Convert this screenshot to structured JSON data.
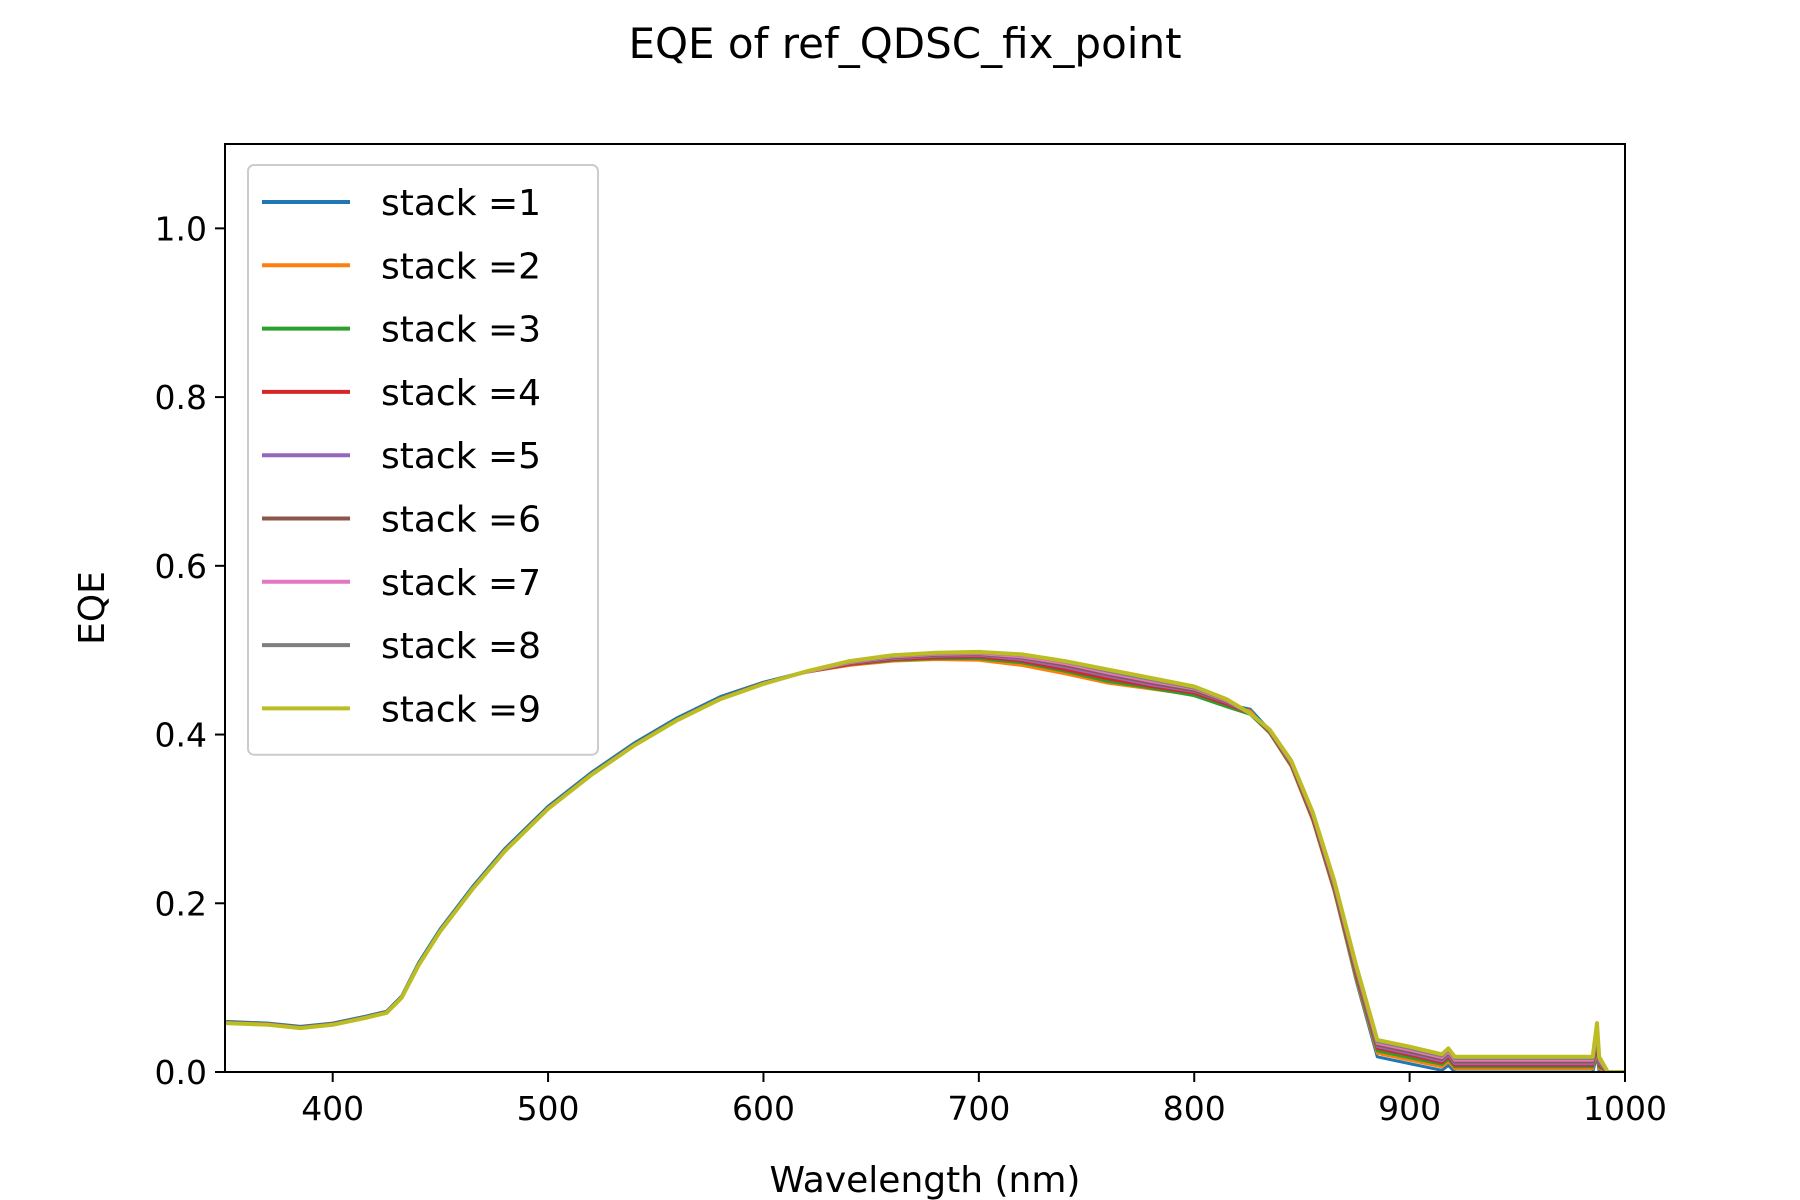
{
  "chart_data": {
    "type": "line",
    "title": "EQE of  ref_QDSC_fix_point",
    "xlabel": "Wavelength (nm)",
    "ylabel": "EQE",
    "xlim": [
      350,
      1000
    ],
    "ylim": [
      0.0,
      1.1
    ],
    "xticks": [
      400,
      500,
      600,
      700,
      800,
      900,
      1000
    ],
    "xtick_labels": [
      "400",
      "500",
      "600",
      "700",
      "800",
      "900",
      "1000"
    ],
    "yticks": [
      0.0,
      0.2,
      0.4,
      0.6,
      0.8,
      1.0
    ],
    "ytick_labels": [
      "0.0",
      "0.2",
      "0.4",
      "0.6",
      "0.8",
      "1.0"
    ],
    "grid": false,
    "legend_position": "top-left",
    "series": [
      {
        "name": "stack =1",
        "color": "#1f77b4",
        "x": [
          350,
          370,
          385,
          400,
          415,
          425,
          432,
          440,
          450,
          465,
          480,
          500,
          520,
          540,
          560,
          580,
          600,
          620,
          640,
          660,
          680,
          700,
          720,
          740,
          760,
          780,
          800,
          815,
          826,
          835,
          845,
          855,
          865,
          875,
          885,
          900,
          915,
          918,
          921,
          925,
          940,
          960,
          980,
          985,
          987,
          988,
          992,
          1000
        ],
        "y": [
          0.06,
          0.058,
          0.054,
          0.058,
          0.066,
          0.072,
          0.09,
          0.13,
          0.17,
          0.22,
          0.265,
          0.315,
          0.355,
          0.39,
          0.42,
          0.445,
          0.462,
          0.475,
          0.483,
          0.488,
          0.49,
          0.49,
          0.484,
          0.474,
          0.463,
          0.455,
          0.447,
          0.436,
          0.43,
          0.405,
          0.365,
          0.3,
          0.215,
          0.11,
          0.018,
          0.01,
          0.002,
          0.008,
          0.0,
          0.0,
          0.0,
          0.0,
          0.0,
          0.0,
          0.02,
          0.0,
          0.0,
          0.0
        ]
      },
      {
        "name": "stack =2",
        "color": "#ff7f0e",
        "x": [
          350,
          370,
          385,
          400,
          415,
          425,
          432,
          440,
          450,
          465,
          480,
          500,
          520,
          540,
          560,
          580,
          600,
          620,
          640,
          660,
          680,
          700,
          720,
          740,
          760,
          780,
          800,
          815,
          826,
          835,
          845,
          855,
          865,
          875,
          885,
          900,
          915,
          918,
          921,
          925,
          940,
          960,
          980,
          985,
          987,
          988,
          992,
          1000
        ],
        "y": [
          0.059,
          0.057,
          0.053,
          0.057,
          0.065,
          0.071,
          0.089,
          0.128,
          0.168,
          0.218,
          0.263,
          0.313,
          0.353,
          0.388,
          0.418,
          0.443,
          0.461,
          0.474,
          0.482,
          0.487,
          0.489,
          0.488,
          0.482,
          0.472,
          0.461,
          0.454,
          0.447,
          0.435,
          0.428,
          0.402,
          0.362,
          0.298,
          0.214,
          0.112,
          0.022,
          0.014,
          0.006,
          0.012,
          0.004,
          0.004,
          0.004,
          0.004,
          0.004,
          0.004,
          0.026,
          0.004,
          0.0,
          0.0
        ]
      },
      {
        "name": "stack =3",
        "color": "#2ca02c",
        "x": [
          350,
          370,
          385,
          400,
          415,
          425,
          432,
          440,
          450,
          465,
          480,
          500,
          520,
          540,
          560,
          580,
          600,
          620,
          640,
          660,
          680,
          700,
          720,
          740,
          760,
          780,
          800,
          815,
          826,
          835,
          845,
          855,
          865,
          875,
          885,
          900,
          915,
          918,
          921,
          925,
          940,
          960,
          980,
          985,
          987,
          988,
          992,
          1000
        ],
        "y": [
          0.059,
          0.057,
          0.053,
          0.057,
          0.065,
          0.071,
          0.089,
          0.128,
          0.168,
          0.218,
          0.263,
          0.313,
          0.353,
          0.388,
          0.418,
          0.443,
          0.461,
          0.474,
          0.483,
          0.488,
          0.49,
          0.49,
          0.485,
          0.475,
          0.463,
          0.455,
          0.446,
          0.433,
          0.424,
          0.402,
          0.363,
          0.299,
          0.215,
          0.114,
          0.025,
          0.017,
          0.009,
          0.015,
          0.006,
          0.006,
          0.006,
          0.006,
          0.006,
          0.006,
          0.03,
          0.006,
          0.0,
          0.0
        ]
      },
      {
        "name": "stack =4",
        "color": "#d62728",
        "x": [
          350,
          370,
          385,
          400,
          415,
          425,
          432,
          440,
          450,
          465,
          480,
          500,
          520,
          540,
          560,
          580,
          600,
          620,
          640,
          660,
          680,
          700,
          720,
          740,
          760,
          780,
          800,
          815,
          826,
          835,
          845,
          855,
          865,
          875,
          885,
          900,
          915,
          918,
          921,
          925,
          940,
          960,
          980,
          985,
          987,
          988,
          992,
          1000
        ],
        "y": [
          0.059,
          0.057,
          0.053,
          0.057,
          0.065,
          0.071,
          0.089,
          0.128,
          0.168,
          0.218,
          0.263,
          0.313,
          0.353,
          0.388,
          0.418,
          0.443,
          0.461,
          0.474,
          0.483,
          0.489,
          0.491,
          0.492,
          0.487,
          0.477,
          0.466,
          0.457,
          0.449,
          0.436,
          0.425,
          0.403,
          0.364,
          0.3,
          0.217,
          0.117,
          0.028,
          0.02,
          0.011,
          0.018,
          0.008,
          0.008,
          0.008,
          0.008,
          0.008,
          0.008,
          0.034,
          0.008,
          0.0,
          0.0
        ]
      },
      {
        "name": "stack =5",
        "color": "#9467bd",
        "x": [
          350,
          370,
          385,
          400,
          415,
          425,
          432,
          440,
          450,
          465,
          480,
          500,
          520,
          540,
          560,
          580,
          600,
          620,
          640,
          660,
          680,
          700,
          720,
          740,
          760,
          780,
          800,
          815,
          826,
          835,
          845,
          855,
          865,
          875,
          885,
          900,
          915,
          918,
          921,
          925,
          940,
          960,
          980,
          985,
          987,
          988,
          992,
          1000
        ],
        "y": [
          0.059,
          0.057,
          0.053,
          0.057,
          0.065,
          0.071,
          0.089,
          0.128,
          0.168,
          0.218,
          0.263,
          0.313,
          0.353,
          0.388,
          0.418,
          0.443,
          0.461,
          0.474,
          0.484,
          0.49,
          0.493,
          0.494,
          0.489,
          0.48,
          0.469,
          0.459,
          0.451,
          0.438,
          0.425,
          0.404,
          0.365,
          0.302,
          0.219,
          0.12,
          0.03,
          0.022,
          0.013,
          0.02,
          0.01,
          0.01,
          0.01,
          0.01,
          0.01,
          0.01,
          0.038,
          0.01,
          0.0,
          0.0
        ]
      },
      {
        "name": "stack =6",
        "color": "#8c564b",
        "x": [
          350,
          370,
          385,
          400,
          415,
          425,
          432,
          440,
          450,
          465,
          480,
          500,
          520,
          540,
          560,
          580,
          600,
          620,
          640,
          660,
          680,
          700,
          720,
          740,
          760,
          780,
          800,
          815,
          826,
          835,
          845,
          855,
          865,
          875,
          885,
          900,
          915,
          918,
          921,
          925,
          940,
          960,
          980,
          985,
          987,
          988,
          992,
          1000
        ],
        "y": [
          0.059,
          0.057,
          0.053,
          0.057,
          0.065,
          0.071,
          0.089,
          0.128,
          0.168,
          0.218,
          0.263,
          0.313,
          0.353,
          0.388,
          0.418,
          0.443,
          0.461,
          0.474,
          0.484,
          0.491,
          0.494,
          0.495,
          0.491,
          0.482,
          0.471,
          0.461,
          0.452,
          0.439,
          0.425,
          0.405,
          0.366,
          0.303,
          0.221,
          0.122,
          0.032,
          0.024,
          0.015,
          0.022,
          0.012,
          0.012,
          0.012,
          0.012,
          0.012,
          0.012,
          0.042,
          0.012,
          0.0,
          0.0
        ]
      },
      {
        "name": "stack =7",
        "color": "#e377c2",
        "x": [
          350,
          370,
          385,
          400,
          415,
          425,
          432,
          440,
          450,
          465,
          480,
          500,
          520,
          540,
          560,
          580,
          600,
          620,
          640,
          660,
          680,
          700,
          720,
          740,
          760,
          780,
          800,
          815,
          826,
          835,
          845,
          855,
          865,
          875,
          885,
          900,
          915,
          918,
          921,
          925,
          940,
          960,
          980,
          985,
          987,
          988,
          992,
          1000
        ],
        "y": [
          0.058,
          0.056,
          0.052,
          0.056,
          0.064,
          0.07,
          0.088,
          0.127,
          0.167,
          0.217,
          0.262,
          0.312,
          0.352,
          0.387,
          0.417,
          0.442,
          0.46,
          0.474,
          0.485,
          0.492,
          0.495,
          0.496,
          0.492,
          0.484,
          0.473,
          0.463,
          0.454,
          0.44,
          0.425,
          0.405,
          0.367,
          0.305,
          0.223,
          0.124,
          0.034,
          0.026,
          0.017,
          0.024,
          0.014,
          0.014,
          0.014,
          0.014,
          0.014,
          0.014,
          0.046,
          0.014,
          0.0,
          0.0
        ]
      },
      {
        "name": "stack =8",
        "color": "#7f7f7f",
        "x": [
          350,
          370,
          385,
          400,
          415,
          425,
          432,
          440,
          450,
          465,
          480,
          500,
          520,
          540,
          560,
          580,
          600,
          620,
          640,
          660,
          680,
          700,
          720,
          740,
          760,
          780,
          800,
          815,
          826,
          835,
          845,
          855,
          865,
          875,
          885,
          900,
          915,
          918,
          921,
          925,
          940,
          960,
          980,
          985,
          987,
          988,
          992,
          1000
        ],
        "y": [
          0.058,
          0.056,
          0.052,
          0.056,
          0.064,
          0.07,
          0.088,
          0.127,
          0.167,
          0.217,
          0.262,
          0.312,
          0.352,
          0.387,
          0.417,
          0.442,
          0.46,
          0.475,
          0.486,
          0.493,
          0.496,
          0.497,
          0.494,
          0.486,
          0.475,
          0.465,
          0.455,
          0.441,
          0.425,
          0.406,
          0.368,
          0.306,
          0.225,
          0.126,
          0.036,
          0.028,
          0.019,
          0.026,
          0.016,
          0.016,
          0.016,
          0.016,
          0.016,
          0.016,
          0.05,
          0.016,
          0.0,
          0.0
        ]
      },
      {
        "name": "stack =9",
        "color": "#bcbd22",
        "x": [
          350,
          370,
          385,
          400,
          415,
          425,
          432,
          440,
          450,
          465,
          480,
          500,
          520,
          540,
          560,
          580,
          600,
          620,
          640,
          660,
          680,
          700,
          720,
          740,
          760,
          780,
          800,
          815,
          826,
          835,
          845,
          855,
          865,
          875,
          885,
          900,
          915,
          918,
          921,
          925,
          940,
          960,
          980,
          985,
          987,
          988,
          992,
          1000
        ],
        "y": [
          0.058,
          0.056,
          0.052,
          0.056,
          0.064,
          0.07,
          0.088,
          0.127,
          0.167,
          0.217,
          0.262,
          0.312,
          0.352,
          0.387,
          0.417,
          0.442,
          0.46,
          0.475,
          0.487,
          0.494,
          0.497,
          0.498,
          0.495,
          0.487,
          0.477,
          0.467,
          0.457,
          0.442,
          0.425,
          0.406,
          0.369,
          0.308,
          0.227,
          0.128,
          0.038,
          0.03,
          0.021,
          0.028,
          0.018,
          0.018,
          0.018,
          0.018,
          0.018,
          0.018,
          0.058,
          0.018,
          0.0,
          0.0
        ]
      }
    ]
  }
}
